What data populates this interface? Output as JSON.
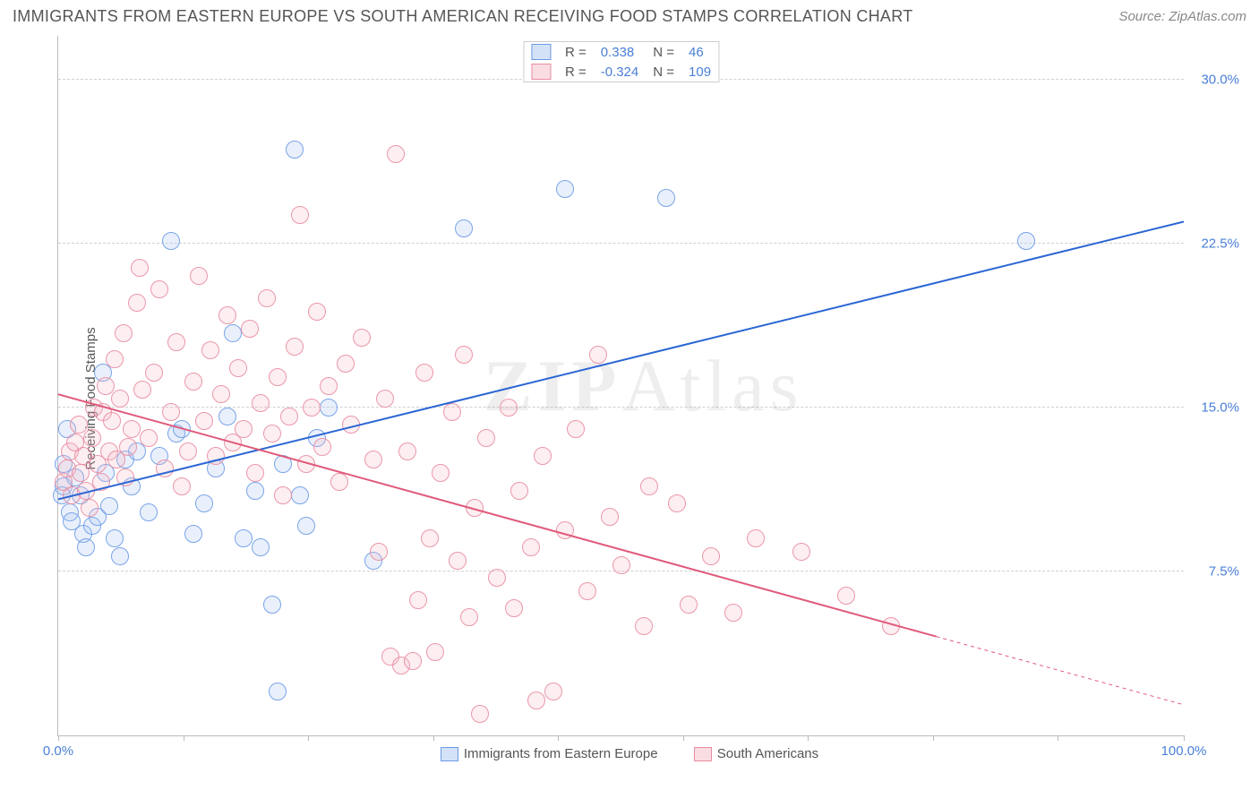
{
  "header": {
    "title": "IMMIGRANTS FROM EASTERN EUROPE VS SOUTH AMERICAN RECEIVING FOOD STAMPS CORRELATION CHART",
    "source": "Source: ZipAtlas.com"
  },
  "watermark": {
    "prefix": "ZIP",
    "suffix": "Atlas"
  },
  "chart": {
    "type": "scatter",
    "ylabel": "Receiving Food Stamps",
    "xlim": [
      0,
      100
    ],
    "ylim": [
      0,
      32
    ],
    "xtick_label_min": "0.0%",
    "xtick_label_max": "100.0%",
    "ytick_labels": [
      "7.5%",
      "15.0%",
      "22.5%",
      "30.0%"
    ],
    "ytick_values": [
      7.5,
      15.0,
      22.5,
      30.0
    ],
    "xtick_values": [
      0,
      11.1,
      22.2,
      33.3,
      44.4,
      55.5,
      66.6,
      77.7,
      88.8,
      100
    ],
    "background_color": "#ffffff",
    "grid_color": "#d0d0d0",
    "grid_dash": true,
    "point_radius": 10,
    "point_border_width": 1.5,
    "point_fill_opacity": 0.28,
    "label_fontsize": 15,
    "tick_color": "#4a7fd6",
    "series": [
      {
        "key": "eastern_europe",
        "label": "Immigrants from Eastern Europe",
        "color_border": "#6b9be8",
        "color_fill": "#a9c6f0",
        "R": "0.338",
        "N": "46",
        "trend": {
          "y_at_x0": 10.8,
          "y_at_x100": 23.5,
          "line_color": "#2a66d4",
          "line_width": 2,
          "dash_from_x": null
        },
        "points": [
          [
            0.5,
            12.4
          ],
          [
            0.8,
            14.0
          ],
          [
            0.5,
            11.4
          ],
          [
            0.3,
            11.0
          ],
          [
            1.0,
            10.2
          ],
          [
            1.2,
            9.8
          ],
          [
            1.5,
            11.8
          ],
          [
            2.0,
            11.0
          ],
          [
            2.2,
            9.2
          ],
          [
            2.5,
            8.6
          ],
          [
            3.0,
            9.6
          ],
          [
            3.5,
            10.0
          ],
          [
            4.0,
            16.6
          ],
          [
            4.2,
            12.0
          ],
          [
            4.5,
            10.5
          ],
          [
            5.0,
            9.0
          ],
          [
            5.5,
            8.2
          ],
          [
            6.0,
            12.6
          ],
          [
            6.5,
            11.4
          ],
          [
            7.0,
            13.0
          ],
          [
            8.0,
            10.2
          ],
          [
            9.0,
            12.8
          ],
          [
            10.0,
            22.6
          ],
          [
            10.5,
            13.8
          ],
          [
            11.0,
            14.0
          ],
          [
            12.0,
            9.2
          ],
          [
            13.0,
            10.6
          ],
          [
            14.0,
            12.2
          ],
          [
            15.0,
            14.6
          ],
          [
            15.5,
            18.4
          ],
          [
            16.5,
            9.0
          ],
          [
            17.5,
            11.2
          ],
          [
            18.0,
            8.6
          ],
          [
            19.0,
            6.0
          ],
          [
            19.5,
            2.0
          ],
          [
            20.0,
            12.4
          ],
          [
            21.0,
            26.8
          ],
          [
            21.5,
            11.0
          ],
          [
            22.0,
            9.6
          ],
          [
            23.0,
            13.6
          ],
          [
            24.0,
            15.0
          ],
          [
            28.0,
            8.0
          ],
          [
            36.0,
            23.2
          ],
          [
            45.0,
            25.0
          ],
          [
            54.0,
            24.6
          ],
          [
            86.0,
            22.6
          ]
        ]
      },
      {
        "key": "south_american",
        "label": "South Americans",
        "color_border": "#e98ca0",
        "color_fill": "#f4bcc8",
        "R": "-0.324",
        "N": "109",
        "trend": {
          "y_at_x0": 15.6,
          "y_at_x100": 1.4,
          "line_color": "#e05a7a",
          "line_width": 2,
          "dash_from_x": 78
        },
        "points": [
          [
            0.5,
            11.6
          ],
          [
            0.8,
            12.2
          ],
          [
            1.0,
            13.0
          ],
          [
            1.2,
            11.0
          ],
          [
            1.5,
            13.4
          ],
          [
            1.8,
            14.2
          ],
          [
            2.0,
            12.0
          ],
          [
            2.2,
            12.8
          ],
          [
            2.5,
            11.2
          ],
          [
            2.8,
            10.4
          ],
          [
            3.0,
            13.6
          ],
          [
            3.2,
            15.0
          ],
          [
            3.5,
            12.4
          ],
          [
            3.8,
            11.6
          ],
          [
            4.0,
            14.8
          ],
          [
            4.2,
            16.0
          ],
          [
            4.5,
            13.0
          ],
          [
            4.8,
            14.4
          ],
          [
            5.0,
            17.2
          ],
          [
            5.2,
            12.6
          ],
          [
            5.5,
            15.4
          ],
          [
            5.8,
            18.4
          ],
          [
            6.0,
            11.8
          ],
          [
            6.2,
            13.2
          ],
          [
            6.5,
            14.0
          ],
          [
            7.0,
            19.8
          ],
          [
            7.2,
            21.4
          ],
          [
            7.5,
            15.8
          ],
          [
            8.0,
            13.6
          ],
          [
            8.5,
            16.6
          ],
          [
            9.0,
            20.4
          ],
          [
            9.5,
            12.2
          ],
          [
            10.0,
            14.8
          ],
          [
            10.5,
            18.0
          ],
          [
            11.0,
            11.4
          ],
          [
            11.5,
            13.0
          ],
          [
            12.0,
            16.2
          ],
          [
            12.5,
            21.0
          ],
          [
            13.0,
            14.4
          ],
          [
            13.5,
            17.6
          ],
          [
            14.0,
            12.8
          ],
          [
            14.5,
            15.6
          ],
          [
            15.0,
            19.2
          ],
          [
            15.5,
            13.4
          ],
          [
            16.0,
            16.8
          ],
          [
            16.5,
            14.0
          ],
          [
            17.0,
            18.6
          ],
          [
            17.5,
            12.0
          ],
          [
            18.0,
            15.2
          ],
          [
            18.5,
            20.0
          ],
          [
            19.0,
            13.8
          ],
          [
            19.5,
            16.4
          ],
          [
            20.0,
            11.0
          ],
          [
            20.5,
            14.6
          ],
          [
            21.0,
            17.8
          ],
          [
            21.5,
            23.8
          ],
          [
            22.0,
            12.4
          ],
          [
            22.5,
            15.0
          ],
          [
            23.0,
            19.4
          ],
          [
            23.5,
            13.2
          ],
          [
            24.0,
            16.0
          ],
          [
            25.0,
            11.6
          ],
          [
            25.5,
            17.0
          ],
          [
            26.0,
            14.2
          ],
          [
            27.0,
            18.2
          ],
          [
            28.0,
            12.6
          ],
          [
            28.5,
            8.4
          ],
          [
            29.0,
            15.4
          ],
          [
            29.5,
            3.6
          ],
          [
            30.0,
            26.6
          ],
          [
            30.5,
            3.2
          ],
          [
            31.0,
            13.0
          ],
          [
            31.5,
            3.4
          ],
          [
            32.0,
            6.2
          ],
          [
            32.5,
            16.6
          ],
          [
            33.0,
            9.0
          ],
          [
            33.5,
            3.8
          ],
          [
            34.0,
            12.0
          ],
          [
            35.0,
            14.8
          ],
          [
            35.5,
            8.0
          ],
          [
            36.0,
            17.4
          ],
          [
            36.5,
            5.4
          ],
          [
            37.0,
            10.4
          ],
          [
            37.5,
            1.0
          ],
          [
            38.0,
            13.6
          ],
          [
            39.0,
            7.2
          ],
          [
            40.0,
            15.0
          ],
          [
            40.5,
            5.8
          ],
          [
            41.0,
            11.2
          ],
          [
            42.0,
            8.6
          ],
          [
            42.5,
            1.6
          ],
          [
            43.0,
            12.8
          ],
          [
            44.0,
            2.0
          ],
          [
            45.0,
            9.4
          ],
          [
            46.0,
            14.0
          ],
          [
            47.0,
            6.6
          ],
          [
            48.0,
            17.4
          ],
          [
            49.0,
            10.0
          ],
          [
            50.0,
            7.8
          ],
          [
            52.0,
            5.0
          ],
          [
            52.5,
            11.4
          ],
          [
            55.0,
            10.6
          ],
          [
            56.0,
            6.0
          ],
          [
            58.0,
            8.2
          ],
          [
            60.0,
            5.6
          ],
          [
            62.0,
            9.0
          ],
          [
            66.0,
            8.4
          ],
          [
            70.0,
            6.4
          ],
          [
            74.0,
            5.0
          ]
        ]
      }
    ]
  },
  "legend_top": {
    "R_label": "R =",
    "N_label": "N ="
  }
}
